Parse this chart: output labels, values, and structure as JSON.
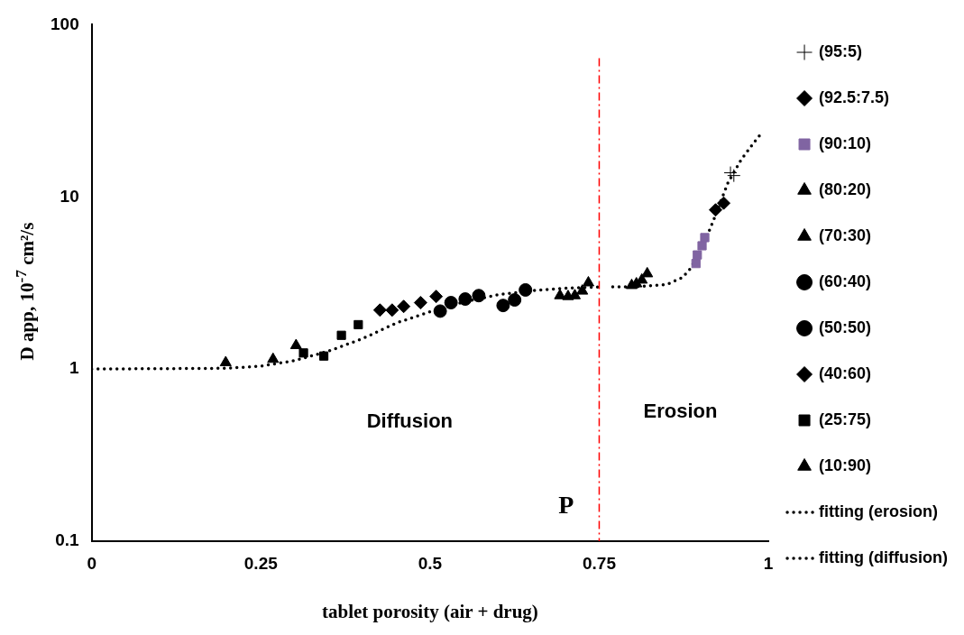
{
  "chart_data": {
    "type": "scatter",
    "xlabel": "tablet porosity (air + drug)",
    "ylabel": "D app, 10$^{-7}$ cm²/s",
    "log": "y",
    "xlim": [
      0,
      1
    ],
    "ylim": [
      0.1,
      100
    ],
    "xticks": [
      0,
      0.25,
      0.5,
      0.75,
      1
    ],
    "yticks": [
      0.1,
      1,
      10,
      100
    ],
    "grid": false,
    "legend": "right",
    "annotations": [
      "Diffusion",
      "Erosion"
    ],
    "ref_lines": [
      {
        "axis": "x",
        "value": 0.75,
        "label": "P",
        "color": "#ff0000",
        "line_style": "dashed"
      }
    ],
    "series": [
      {
        "name": "(95:5)",
        "type": "scatter",
        "marker": "cross",
        "color": "#000000",
        "x": [
          0.944,
          0.949
        ],
        "values": [
          13.8,
          13.3
        ]
      },
      {
        "name": "(92.5:7.5)",
        "type": "scatter",
        "marker": "diamond",
        "color": "#000000",
        "x": [
          0.922,
          0.934
        ],
        "values": [
          8.4,
          9.2
        ]
      },
      {
        "name": "(90:10)",
        "type": "scatter",
        "marker": "square",
        "color": "#8064a2",
        "x": [
          0.893,
          0.895,
          0.902,
          0.906
        ],
        "values": [
          4.1,
          4.6,
          5.2,
          5.8
        ]
      },
      {
        "name": "(80:20)",
        "type": "scatter",
        "marker": "triangle",
        "color": "#000000",
        "x": [
          0.798,
          0.805,
          0.813,
          0.821
        ],
        "values": [
          3.06,
          3.13,
          3.29,
          3.58
        ]
      },
      {
        "name": "(70:30)",
        "type": "scatter",
        "marker": "triangle",
        "color": "#000000",
        "x": [
          0.692,
          0.704,
          0.714,
          0.725,
          0.734
        ],
        "values": [
          2.67,
          2.64,
          2.67,
          2.84,
          3.17
        ]
      },
      {
        "name": "(60:40)",
        "type": "scatter",
        "marker": "circle",
        "color": "#000000",
        "x": [
          0.608,
          0.625,
          0.641
        ],
        "values": [
          2.34,
          2.52,
          2.88
        ]
      },
      {
        "name": "(50:50)",
        "type": "scatter",
        "marker": "circle",
        "color": "#000000",
        "x": [
          0.515,
          0.531,
          0.552,
          0.572
        ],
        "values": [
          2.17,
          2.43,
          2.55,
          2.67
        ]
      },
      {
        "name": "(40:60)",
        "type": "scatter",
        "marker": "diamond",
        "color": "#000000",
        "x": [
          0.426,
          0.444,
          0.461,
          0.486,
          0.509
        ],
        "values": [
          2.2,
          2.2,
          2.31,
          2.43,
          2.64
        ]
      },
      {
        "name": "(25:75)",
        "type": "scatter",
        "marker": "square",
        "color": "#000000",
        "x": [
          0.313,
          0.343,
          0.369,
          0.394
        ],
        "values": [
          1.24,
          1.19,
          1.57,
          1.81
        ]
      },
      {
        "name": "(10:90)",
        "type": "scatter",
        "marker": "triangle",
        "color": "#000000",
        "x": [
          0.198,
          0.268,
          0.302
        ],
        "values": [
          1.09,
          1.14,
          1.37
        ]
      },
      {
        "name": "fitting (erosion)",
        "type": "line",
        "marker": "none",
        "line_style": "dotted",
        "color": "#000000",
        "x": [
          0.77,
          0.8,
          0.85,
          0.873,
          0.884,
          0.9,
          0.92,
          0.94,
          0.96,
          0.98,
          0.99
        ],
        "values": [
          3.0,
          3.0,
          3.1,
          3.4,
          3.8,
          4.8,
          7.5,
          12,
          16.5,
          21,
          23.5
        ]
      },
      {
        "name": "fitting (diffusion)",
        "type": "line",
        "marker": "none",
        "line_style": "dotted",
        "color": "#000000",
        "x": [
          0,
          0.2,
          0.25,
          0.3,
          0.35,
          0.4,
          0.45,
          0.5,
          0.55,
          0.6,
          0.65,
          0.7,
          0.75
        ],
        "values": [
          1,
          1.01,
          1.04,
          1.12,
          1.27,
          1.5,
          1.85,
          2.15,
          2.45,
          2.7,
          2.85,
          2.95,
          3.0
        ]
      }
    ]
  }
}
